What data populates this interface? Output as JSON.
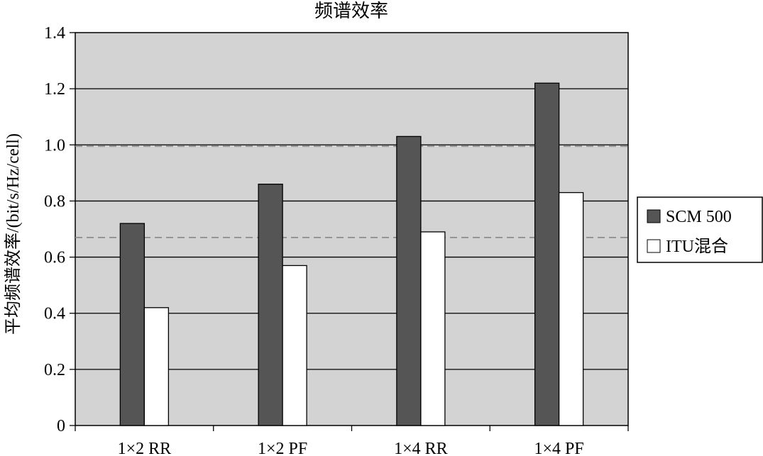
{
  "chart_data": {
    "type": "bar",
    "title": "频谱效率",
    "xlabel": "",
    "ylabel": "平均频谱效率/(bit/s/Hz/cell)",
    "categories": [
      "1×2 RR",
      "1×2 PF",
      "1×4 RR",
      "1×4 PF"
    ],
    "series": [
      {
        "name": "SCM 500",
        "values": [
          0.72,
          0.86,
          1.03,
          1.22
        ],
        "color": "#555555"
      },
      {
        "name": "ITU混合",
        "values": [
          0.42,
          0.57,
          0.69,
          0.83
        ],
        "color": "#ffffff"
      }
    ],
    "ylim": [
      0,
      1.4
    ],
    "yticks": [
      "0",
      "0.2",
      "0.4",
      "0.6",
      "0.8",
      "1.0",
      "1.2",
      "1.4"
    ],
    "reference_lines": [
      0.67,
      0.995
    ],
    "grid": true,
    "legend_position": "right",
    "plot_background": "#d3d3d3"
  }
}
